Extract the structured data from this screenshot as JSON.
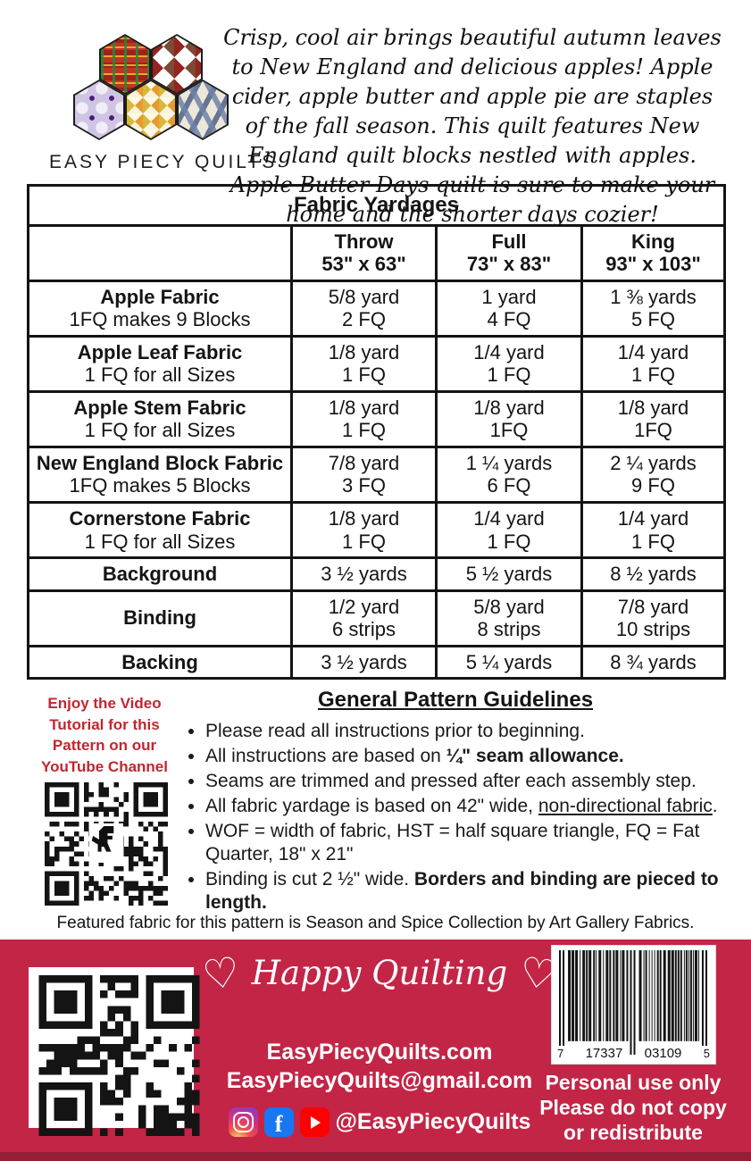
{
  "logo": {
    "wordmark": "EASY PIECY QUILTS"
  },
  "intro": {
    "text": "Crisp, cool air brings beautiful autumn leaves to New England and delicious apples! Apple cider, apple butter and apple pie are staples of the fall season. This quilt features New England quilt blocks nestled with apples. Apple Butter Days quilt is sure to make your home and the shorter days cozier!"
  },
  "table": {
    "title": "Fabric Yardages",
    "columns": [
      {
        "name": "Throw",
        "size": "53\" x 63\""
      },
      {
        "name": "Full",
        "size": "73\" x 83\""
      },
      {
        "name": "King",
        "size": "93\" x 103\""
      }
    ],
    "rows": [
      {
        "label": "Apple Fabric",
        "sub": "1FQ makes 9 Blocks",
        "cols": [
          {
            "main": "5/8 yard",
            "sub": "2 FQ"
          },
          {
            "main": "1 yard",
            "sub": "4 FQ"
          },
          {
            "main": "1 ⅜ yards",
            "sub": "5 FQ"
          }
        ]
      },
      {
        "label": "Apple Leaf Fabric",
        "sub": "1 FQ for all Sizes",
        "cols": [
          {
            "main": "1/8 yard",
            "sub": "1 FQ"
          },
          {
            "main": "1/4 yard",
            "sub": "1 FQ"
          },
          {
            "main": "1/4 yard",
            "sub": "1 FQ"
          }
        ]
      },
      {
        "label": "Apple Stem Fabric",
        "sub": "1 FQ for all Sizes",
        "cols": [
          {
            "main": "1/8 yard",
            "sub": "1 FQ"
          },
          {
            "main": "1/8 yard",
            "sub": "1FQ"
          },
          {
            "main": "1/8 yard",
            "sub": "1FQ"
          }
        ]
      },
      {
        "label": "New England Block Fabric",
        "sub": "1FQ makes 5 Blocks",
        "cols": [
          {
            "main": "7/8 yard",
            "sub": "3 FQ"
          },
          {
            "main": "1 ¼ yards",
            "sub": "6 FQ"
          },
          {
            "main": "2 ¼ yards",
            "sub": "9 FQ"
          }
        ]
      },
      {
        "label": "Cornerstone Fabric",
        "sub": "1 FQ for all Sizes",
        "cols": [
          {
            "main": "1/8 yard",
            "sub": "1 FQ"
          },
          {
            "main": "1/4 yard",
            "sub": "1 FQ"
          },
          {
            "main": "1/4 yard",
            "sub": "1 FQ"
          }
        ]
      },
      {
        "label": "Background",
        "sub": "",
        "cols": [
          {
            "main": "3 ½ yards",
            "sub": ""
          },
          {
            "main": "5 ½ yards",
            "sub": ""
          },
          {
            "main": "8 ½ yards",
            "sub": ""
          }
        ]
      },
      {
        "label": "Binding",
        "sub": "",
        "cols": [
          {
            "main": "1/2 yard",
            "sub": "6 strips"
          },
          {
            "main": "5/8 yard",
            "sub": "8 strips"
          },
          {
            "main": "7/8 yard",
            "sub": "10 strips"
          }
        ]
      },
      {
        "label": "Backing",
        "sub": "",
        "cols": [
          {
            "main": "3 ½ yards",
            "sub": ""
          },
          {
            "main": "5 ¼ yards",
            "sub": ""
          },
          {
            "main": "8 ¾ yards",
            "sub": ""
          }
        ]
      }
    ]
  },
  "guidelines": {
    "video_note": [
      "Enjoy the Video",
      "Tutorial for this",
      "Pattern on our",
      "YouTube Channel"
    ],
    "title": "General Pattern Guidelines",
    "bullets": {
      "b1": "Please read all instructions prior to beginning.",
      "b2_pre": "All instructions are based on ",
      "b2_bold": "¼\" seam allowance.",
      "b3": "Seams are trimmed and pressed after each assembly step.",
      "b4_pre": "All fabric yardage is based on 42\" wide, ",
      "b4_underline": "non-directional fabric",
      "b4_post": ".",
      "b5": "WOF = width of fabric, HST = half square triangle, FQ = Fat Quarter, 18\" x 21\"",
      "b6_pre": "Binding is cut 2 ½\" wide. ",
      "b6_bold": "Borders and binding are pieced to length."
    }
  },
  "featured_note": "Featured fabric for this pattern is Season and Spice Collection by Art Gallery Fabrics.",
  "banner": {
    "heart": "♡",
    "tagline": "Happy Quilting",
    "website": "EasyPiecyQuilts.com",
    "email": "EasyPiecyQuilts@gmail.com",
    "social_handle": "@EasyPiecyQuilts",
    "facebook_letter": "f",
    "barcode_digits": {
      "d1": "7",
      "d2": "17337",
      "d3": "03109",
      "d4": "5"
    },
    "usage": [
      "Personal use only",
      "Please do not copy",
      "or redistribute"
    ]
  },
  "colors": {
    "banner_red": "#c32546",
    "strip_red": "#951d36",
    "note_red": "#c2262f"
  }
}
